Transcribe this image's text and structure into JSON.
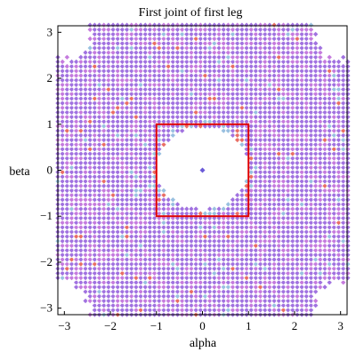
{
  "chart_data": {
    "type": "scatter",
    "title": "First joint of first leg",
    "xlabel": "alpha",
    "ylabel": "beta",
    "xlim": [
      -3.14159,
      3.14159
    ],
    "ylim": [
      -3.14159,
      3.14159
    ],
    "xticks": [
      -3,
      -2,
      -1,
      0,
      1,
      2,
      3
    ],
    "yticks": [
      -3,
      -2,
      -1,
      0,
      1,
      2,
      3
    ],
    "grid": false,
    "legend": "none",
    "marker": "diamond",
    "grid_step": 0.1,
    "point_colors": {
      "dominant": "#8a4fd8",
      "secondary": "#b65ad6",
      "accent": "#e24a3f",
      "edge": "#7fb0d8"
    },
    "excluded_region": {
      "shape": "ellipse",
      "cx": 0,
      "cy": 0.05,
      "rx": 1.0,
      "ry": 0.9
    },
    "center_point": {
      "x": 0,
      "y": 0,
      "color": "#6b5bd8"
    },
    "highlight_box": {
      "x_range": [
        -1,
        1
      ],
      "y_range": [
        -1,
        1
      ],
      "color": "#e00000"
    },
    "blank_corners": [
      {
        "x": -3.0,
        "y": 3.0
      },
      {
        "x": 3.0,
        "y": 3.0
      },
      {
        "x": 3.0,
        "y": -3.0
      },
      {
        "x": -3.0,
        "y": -3.0
      }
    ]
  }
}
